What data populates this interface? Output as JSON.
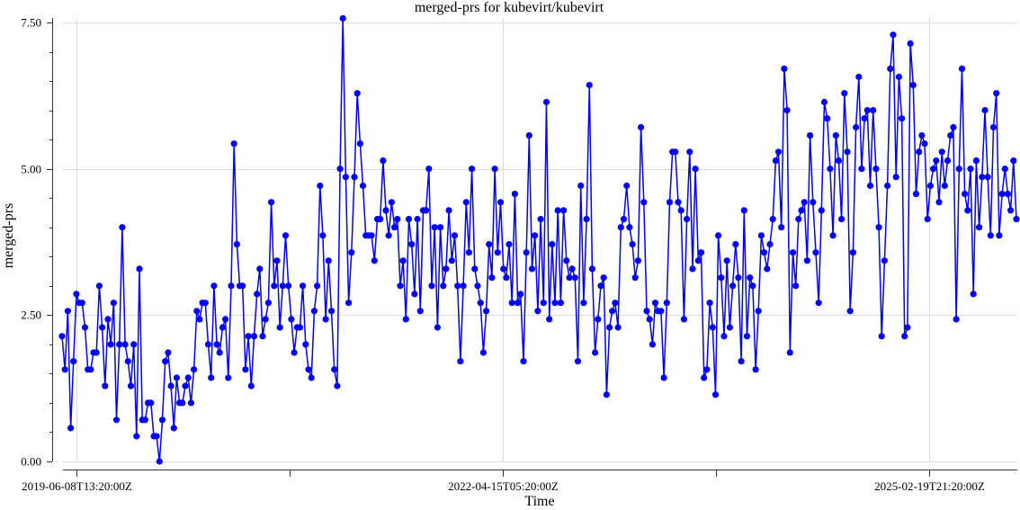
{
  "chart_data": {
    "type": "line",
    "title": "merged-prs for kubevirt/kubevirt",
    "xlabel": "Time",
    "ylabel": "merged-prs",
    "ylim": [
      0,
      7.5
    ],
    "yticks": [
      {
        "value": 0,
        "label": "0.00"
      },
      {
        "value": 2.5,
        "label": "2.50"
      },
      {
        "value": 5,
        "label": "5.00"
      },
      {
        "value": 7.5,
        "label": "7.50"
      }
    ],
    "xticks": [
      {
        "date": "2019-06-08T13:20:00Z",
        "label": "2019-06-08T13:20:00Z"
      },
      {
        "date": "2020-11-10T21:20:00Z",
        "label": ""
      },
      {
        "date": "2022-04-15T05:20:00Z",
        "label": "2022-04-15T05:20:00Z"
      },
      {
        "date": "2023-09-17T13:20:00Z",
        "label": ""
      },
      {
        "date": "2025-02-19T21:20:00Z",
        "label": "2025-02-19T21:20:00Z"
      }
    ],
    "grid": true,
    "legend": "none",
    "color": "#0000ff",
    "x_start": "2019-05-04T13:20:00Z",
    "x_step_days": 7,
    "values": [
      2.14,
      1.57,
      2.57,
      0.57,
      1.71,
      2.86,
      2.71,
      2.71,
      2.29,
      1.57,
      1.57,
      1.86,
      1.86,
      3.0,
      2.29,
      1.29,
      2.43,
      2.0,
      2.71,
      0.71,
      2.0,
      4.0,
      2.0,
      1.71,
      1.29,
      2.0,
      0.43,
      3.29,
      0.71,
      0.71,
      1.0,
      1.0,
      0.43,
      0.43,
      0.0,
      0.71,
      1.71,
      1.86,
      1.29,
      0.57,
      1.43,
      1.0,
      1.0,
      1.29,
      1.43,
      1.0,
      1.57,
      2.57,
      2.43,
      2.71,
      2.71,
      2.0,
      1.43,
      3.0,
      2.0,
      1.86,
      2.29,
      2.43,
      1.43,
      3.0,
      5.43,
      3.71,
      3.0,
      3.0,
      1.57,
      2.14,
      1.29,
      2.14,
      2.86,
      3.29,
      2.14,
      2.43,
      2.71,
      4.43,
      3.0,
      3.43,
      2.29,
      3.0,
      3.86,
      3.0,
      2.43,
      1.86,
      2.29,
      2.29,
      3.0,
      2.0,
      1.57,
      1.43,
      2.57,
      3.0,
      4.71,
      3.86,
      2.43,
      3.43,
      2.57,
      1.57,
      1.29,
      5.0,
      7.57,
      4.86,
      2.71,
      3.57,
      4.86,
      6.29,
      5.43,
      4.71,
      3.86,
      3.86,
      3.86,
      3.43,
      4.14,
      4.14,
      5.14,
      4.29,
      3.86,
      4.43,
      4.0,
      4.14,
      3.0,
      3.43,
      2.43,
      4.14,
      3.71,
      2.86,
      4.14,
      2.57,
      4.29,
      4.29,
      5.0,
      3.0,
      4.0,
      2.29,
      4.0,
      3.0,
      3.29,
      4.29,
      3.43,
      3.86,
      3.0,
      1.71,
      3.0,
      4.43,
      3.57,
      5.0,
      3.29,
      3.0,
      2.71,
      1.86,
      2.57,
      3.71,
      3.14,
      5.0,
      3.57,
      4.43,
      3.29,
      3.14,
      3.71,
      2.71,
      4.57,
      2.71,
      2.86,
      1.71,
      3.57,
      5.57,
      3.29,
      3.86,
      2.57,
      4.14,
      2.71,
      6.14,
      2.43,
      3.71,
      2.71,
      4.29,
      2.71,
      4.29,
      3.43,
      3.14,
      3.29,
      3.14,
      1.71,
      4.71,
      2.71,
      4.14,
      6.43,
      3.29,
      1.86,
      2.43,
      3.0,
      3.14,
      1.14,
      2.29,
      2.57,
      2.71,
      2.29,
      4.0,
      4.14,
      4.71,
      4.0,
      3.71,
      3.14,
      3.43,
      5.71,
      4.43,
      2.57,
      2.43,
      2.0,
      2.71,
      2.57,
      2.57,
      1.43,
      2.71,
      4.43,
      5.29,
      5.29,
      4.43,
      4.29,
      2.43,
      4.14,
      5.29,
      3.29,
      5.0,
      3.43,
      3.57,
      1.43,
      1.57,
      2.71,
      2.29,
      1.14,
      3.86,
      3.14,
      2.14,
      3.43,
      2.29,
      3.0,
      3.71,
      3.14,
      1.71,
      4.29,
      2.14,
      3.14,
      3.0,
      1.57,
      2.57,
      3.86,
      3.57,
      3.29,
      3.71,
      4.14,
      5.14,
      5.29,
      4.0,
      6.71,
      6.0,
      1.86,
      3.57,
      3.0,
      4.14,
      4.29,
      4.43,
      3.43,
      5.57,
      4.43,
      3.57,
      2.71,
      4.29,
      6.14,
      5.86,
      5.0,
      3.86,
      5.57,
      5.14,
      4.14,
      6.29,
      5.29,
      2.57,
      3.57,
      5.71,
      6.57,
      5.0,
      5.86,
      6.0,
      4.71,
      6.0,
      5.0,
      4.0,
      2.14,
      3.43,
      4.71,
      6.71,
      7.29,
      4.86,
      6.57,
      5.86,
      2.14,
      2.29,
      7.14,
      6.43,
      4.57,
      5.29,
      5.57,
      5.43,
      4.14,
      4.71,
      5.0,
      5.14,
      4.43,
      5.29,
      4.71,
      5.14,
      5.57,
      5.71,
      2.43,
      5.0,
      6.71,
      4.57,
      4.29,
      5.0,
      2.86,
      5.14,
      4.0,
      4.86,
      6.0,
      4.86,
      3.86,
      5.71,
      6.29,
      3.86,
      4.57,
      5.0,
      4.57,
      4.29,
      5.14,
      4.14
    ]
  }
}
